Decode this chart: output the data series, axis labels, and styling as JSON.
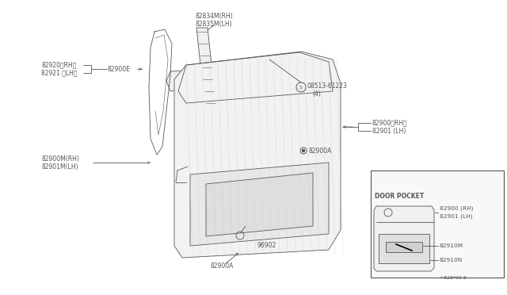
{
  "bg_color": "#ffffff",
  "line_color": "#555555",
  "labels": {
    "top_strip_rh": "82834M(RH)",
    "top_strip_lh": "82835M(LH)",
    "handle_rh": "82920〈RH〉",
    "handle_lh": "82921 〈LH〉",
    "handle_label": "82900E",
    "lower_trim_rh": "82900M(RH)",
    "lower_trim_lh": "82901M(LH)",
    "screw": "08513-61223",
    "screw_count": "(4)",
    "door_panel_rh": "82900〈RH〉",
    "door_panel_lh": "82901 (LH)",
    "clip": "82900A",
    "part_96902": "96902",
    "part_82900A": "82900A",
    "door_pocket_title": "DOOR POCKET",
    "door_pocket_rh": "82900 (RH)",
    "door_pocket_lh": "82901 (LH)",
    "part_82910M": "82910M",
    "part_82910N": "82910N",
    "footer": "^828*00 8"
  }
}
